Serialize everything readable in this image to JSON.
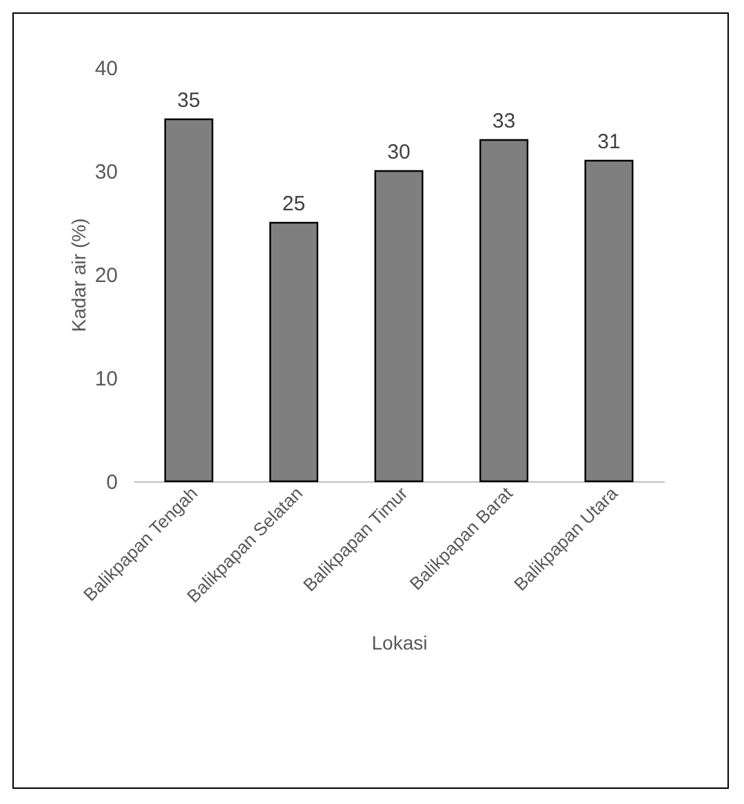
{
  "chart_data": {
    "type": "bar",
    "xlabel": "Lokasi",
    "ylabel": "Kadar air (%)",
    "categories": [
      "Balikpapan Tengah",
      "Balikpapan Selatan",
      "Balikpapan Timur",
      "Balikpapan Barat",
      "Balikpapan Utara"
    ],
    "values": [
      35,
      25,
      30,
      33,
      31
    ],
    "color": "#7f7f7f",
    "ylim": [
      0,
      40
    ],
    "yticks": [
      0,
      10,
      20,
      30,
      40
    ],
    "data_labels": true
  }
}
